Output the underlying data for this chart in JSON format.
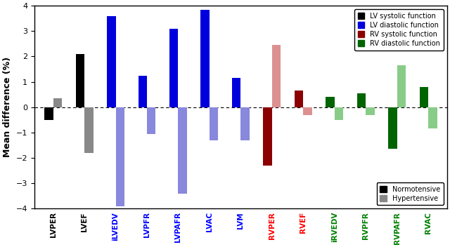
{
  "categories": [
    "LVPER",
    "LVEF",
    "iLVEDV",
    "LVPFR",
    "LVPAFR",
    "LVAC",
    "LVM",
    "RVPER",
    "RVEF",
    "iRVEDV",
    "RVPFR",
    "RVPAFR",
    "RVAC"
  ],
  "normotensive": [
    -0.5,
    2.1,
    3.6,
    1.25,
    3.1,
    3.85,
    1.15,
    -2.3,
    0.65,
    0.4,
    0.55,
    -1.65,
    0.8
  ],
  "hypertensive": [
    0.35,
    -1.8,
    -3.9,
    -1.05,
    -3.4,
    -1.3,
    -1.3,
    2.45,
    -0.3,
    -0.5,
    -0.3,
    1.65,
    -0.85
  ],
  "bar_colors_normo": [
    "#000000",
    "#000000",
    "#0000dd",
    "#0000dd",
    "#0000dd",
    "#0000dd",
    "#0000dd",
    "#8b0000",
    "#8b0000",
    "#006400",
    "#006400",
    "#006400",
    "#006400"
  ],
  "bar_colors_hyper": [
    "#888888",
    "#888888",
    "#8888dd",
    "#8888dd",
    "#8888dd",
    "#8888dd",
    "#8888dd",
    "#dd9090",
    "#dd9090",
    "#88cc88",
    "#88cc88",
    "#88cc88",
    "#88cc88"
  ],
  "xlabel_colors": [
    "black",
    "black",
    "blue",
    "blue",
    "blue",
    "blue",
    "blue",
    "red",
    "red",
    "green",
    "green",
    "green",
    "green"
  ],
  "ylim": [
    -4,
    4
  ],
  "ylabel": "Mean difference (%)",
  "legend_colors": [
    "#000000",
    "#0000dd",
    "#8b0000",
    "#006400"
  ],
  "legend_labels": [
    "LV systolic function",
    "LV diastolic function",
    "RV systolic function",
    "RV diastolic function"
  ],
  "legend2_labels": [
    "Normotensive",
    "Hypertensive"
  ],
  "legend2_colors": [
    "#000000",
    "#888888"
  ],
  "figsize": [
    6.4,
    3.52
  ],
  "dpi": 100
}
